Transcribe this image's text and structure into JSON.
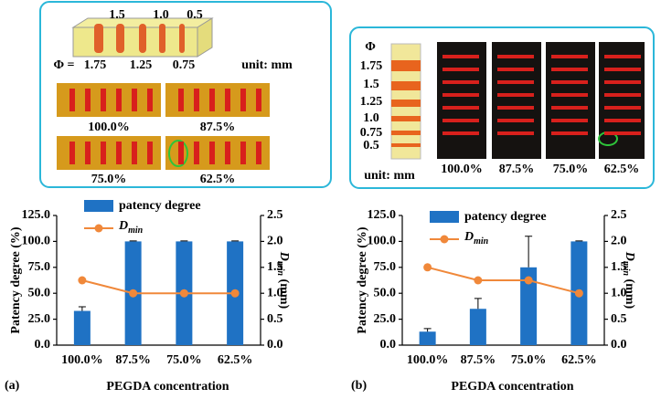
{
  "figure": {
    "a": {
      "label": "(a)",
      "top_numbers": [
        "1.5",
        "1.0",
        "0.5"
      ],
      "phi": "Φ =",
      "bottom_numbers": [
        "1.75",
        "1.25",
        "0.75"
      ],
      "unit": "unit: mm",
      "captions": [
        "100.0%",
        "87.5%",
        "75.0%",
        "62.5%"
      ]
    },
    "b": {
      "label": "(b)",
      "phi": "Φ",
      "diameters": [
        "1.75",
        "1.5",
        "1.25",
        "1.0",
        "0.75",
        "0.5"
      ],
      "unit": "unit: mm",
      "captions": [
        "100.0%",
        "87.5%",
        "75.0%",
        "62.5%"
      ]
    }
  },
  "chart_data": [
    {
      "type": "bar",
      "categories": [
        "100.0%",
        "87.5%",
        "75.0%",
        "62.5%"
      ],
      "series": [
        {
          "name": "patency degree",
          "color": "#1f72c4",
          "values": [
            33,
            100,
            100,
            100
          ],
          "errors": [
            4,
            0.5,
            0.5,
            0.5
          ]
        },
        {
          "name": {
            "main": "D",
            "sub": "min"
          },
          "type": "line",
          "axis": "y2",
          "color": "#f0883a",
          "values": [
            1.25,
            1.0,
            1.0,
            1.0
          ]
        }
      ],
      "ylim": [
        0,
        125
      ],
      "yticks": [
        {
          "value": 0,
          "label": "0.0"
        },
        {
          "value": 25,
          "label": "25.0"
        },
        {
          "value": 50,
          "label": "50.0"
        },
        {
          "value": 75,
          "label": "75.0"
        },
        {
          "value": 100,
          "label": "100.0"
        },
        {
          "value": 125,
          "label": "125.0"
        }
      ],
      "y2lim": [
        0,
        2.5
      ],
      "y2ticks": [
        {
          "value": 0,
          "label": "0.0"
        },
        0.5,
        {
          "value": 1,
          "label": "1.0"
        },
        1.5,
        {
          "value": 2,
          "label": "2.0"
        },
        2.5
      ],
      "ylabel": "Patency degree (%)",
      "y2label": {
        "main": "D",
        "sub": "min",
        "rest": " (mm)"
      },
      "xlabel": "PEGDA concentration"
    },
    {
      "type": "bar",
      "categories": [
        "100.0%",
        "87.5%",
        "75.0%",
        "62.5%"
      ],
      "series": [
        {
          "name": "patency degree",
          "color": "#1f72c4",
          "values": [
            13,
            35,
            75,
            100
          ],
          "errors": [
            3,
            10,
            30,
            0.5
          ]
        },
        {
          "name": {
            "main": "D",
            "sub": "min"
          },
          "type": "line",
          "axis": "y2",
          "color": "#f0883a",
          "values": [
            1.5,
            1.25,
            1.25,
            1.0
          ]
        }
      ],
      "ylim": [
        0,
        125
      ],
      "yticks": [
        {
          "value": 0,
          "label": "0.0"
        },
        {
          "value": 25,
          "label": "25.0"
        },
        {
          "value": 50,
          "label": "50.0"
        },
        {
          "value": 75,
          "label": "75.0"
        },
        {
          "value": 100,
          "label": "100.0"
        },
        {
          "value": 125,
          "label": "125.0"
        }
      ],
      "y2lim": [
        0,
        2.5
      ],
      "y2ticks": [
        {
          "value": 0,
          "label": "0.0"
        },
        0.5,
        {
          "value": 1,
          "label": "1.0"
        },
        1.5,
        {
          "value": 2,
          "label": "2.0"
        },
        2.5
      ],
      "ylabel": "Patency degree (%)",
      "y2label": {
        "main": "D",
        "sub": "min",
        "rest": " (mm)"
      },
      "xlabel": "PEGDA concentration"
    }
  ]
}
